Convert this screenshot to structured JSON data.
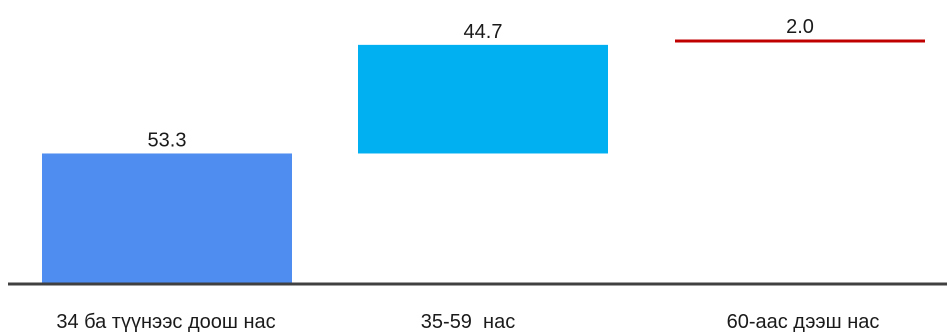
{
  "chart_data": {
    "type": "bar",
    "subtype": "waterfall",
    "categories": [
      "34 ба түүнээс доош нас",
      "35-59  нас",
      "60-аас дээш нас"
    ],
    "values": [
      53.3,
      44.7,
      2.0
    ],
    "value_labels": [
      "53.3",
      "44.7",
      "2.0"
    ],
    "colors": [
      "#4f8ef0",
      "#00b0f0",
      "#c00000"
    ],
    "axis_color": "#404040",
    "ylim": [
      0,
      100
    ],
    "grid": false,
    "legend": "none"
  }
}
